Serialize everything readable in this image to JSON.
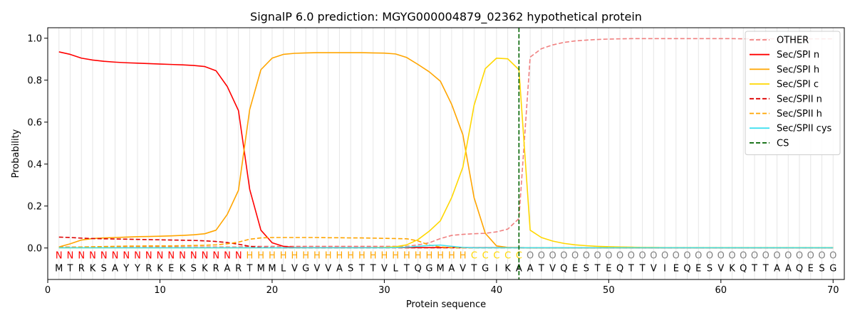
{
  "chart_data": {
    "type": "line",
    "title": "SignalP 6.0 prediction: MGYG000004879_02362 hypothetical protein",
    "xlabel": "Protein sequence",
    "ylabel": "Probability",
    "xlim": [
      0,
      71
    ],
    "ylim": [
      -0.15,
      1.05
    ],
    "xticks": [
      0,
      10,
      20,
      30,
      40,
      50,
      60,
      70
    ],
    "yticks": [
      0.0,
      0.2,
      0.4,
      0.6,
      0.8,
      1.0
    ],
    "ytick_labels": [
      "0.0",
      "0.2",
      "0.4",
      "0.6",
      "0.8",
      "1.0"
    ],
    "grid": "vertical lines at each residue",
    "legend_position": "top-right",
    "sequence": [
      "M",
      "T",
      "R",
      "K",
      "S",
      "A",
      "Y",
      "Y",
      "R",
      "K",
      "E",
      "K",
      "S",
      "K",
      "R",
      "A",
      "R",
      "T",
      "M",
      "M",
      "L",
      "V",
      "G",
      "V",
      "V",
      "A",
      "S",
      "T",
      "T",
      "V",
      "L",
      "T",
      "Q",
      "G",
      "M",
      "A",
      "V",
      "T",
      "G",
      "I",
      "K",
      "A",
      "A",
      "T",
      "V",
      "Q",
      "E",
      "S",
      "T",
      "E",
      "Q",
      "T",
      "T",
      "V",
      "I",
      "E",
      "Q",
      "E",
      "S",
      "V",
      "K",
      "Q",
      "T",
      "T",
      "A",
      "A",
      "Q",
      "E",
      "S",
      "G"
    ],
    "regions": [
      "N",
      "N",
      "N",
      "N",
      "N",
      "N",
      "N",
      "N",
      "N",
      "N",
      "N",
      "N",
      "N",
      "N",
      "N",
      "N",
      "N",
      "H",
      "H",
      "H",
      "H",
      "H",
      "H",
      "H",
      "H",
      "H",
      "H",
      "H",
      "H",
      "H",
      "H",
      "H",
      "H",
      "H",
      "H",
      "H",
      "H",
      "C",
      "C",
      "C",
      "C",
      "C",
      "O",
      "O",
      "O",
      "O",
      "O",
      "O",
      "O",
      "O",
      "O",
      "O",
      "O",
      "O",
      "O",
      "O",
      "O",
      "O",
      "O",
      "O",
      "O",
      "O",
      "O",
      "O",
      "O",
      "O",
      "O",
      "O",
      "O",
      "O",
      "O",
      "O"
    ],
    "region_colors": {
      "N": "#ff0000",
      "H": "#ffa500",
      "C": "#ffd700",
      "O": "#808080"
    },
    "cs_position": 42,
    "series": [
      {
        "name": "OTHER",
        "color": "#f08080",
        "dash": "dashed",
        "values": [
          0.005,
          0.005,
          0.005,
          0.005,
          0.005,
          0.005,
          0.005,
          0.005,
          0.005,
          0.005,
          0.005,
          0.005,
          0.005,
          0.005,
          0.005,
          0.005,
          0.005,
          0.008,
          0.008,
          0.008,
          0.008,
          0.008,
          0.008,
          0.008,
          0.008,
          0.008,
          0.008,
          0.008,
          0.008,
          0.008,
          0.008,
          0.008,
          0.015,
          0.025,
          0.045,
          0.06,
          0.065,
          0.068,
          0.07,
          0.077,
          0.09,
          0.14,
          0.91,
          0.95,
          0.968,
          0.98,
          0.987,
          0.991,
          0.994,
          0.996,
          0.997,
          0.998,
          0.998,
          0.998,
          0.998,
          0.998,
          0.998,
          0.998,
          0.998,
          0.998,
          0.998,
          0.997,
          0.997,
          0.997,
          0.997,
          0.997,
          0.997,
          0.997,
          0.997,
          0.997
        ]
      },
      {
        "name": "Sec/SPI n",
        "color": "#ff0000",
        "dash": "solid",
        "values": [
          0.935,
          0.923,
          0.905,
          0.896,
          0.89,
          0.886,
          0.883,
          0.881,
          0.879,
          0.877,
          0.875,
          0.873,
          0.87,
          0.865,
          0.845,
          0.77,
          0.655,
          0.28,
          0.085,
          0.025,
          0.008,
          0.003,
          0.002,
          0.002,
          0.002,
          0.002,
          0.002,
          0.002,
          0.002,
          0.002,
          0.002,
          0.002,
          0.002,
          0.002,
          0.002,
          0.002,
          0.002,
          0.002,
          0.002,
          0.002,
          0.002,
          0.002,
          0.001,
          0.001,
          0.001,
          0.001,
          0.001,
          0.001,
          0.001,
          0.001,
          0.001,
          0.001,
          0.001,
          0.001,
          0.001,
          0.001,
          0.001,
          0.001,
          0.001,
          0.001,
          0.001,
          0.001,
          0.001,
          0.001,
          0.001,
          0.001,
          0.001,
          0.001,
          0.001,
          0.001
        ]
      },
      {
        "name": "Sec/SPI h",
        "color": "#ffa500",
        "dash": "solid",
        "values": [
          0.005,
          0.02,
          0.038,
          0.045,
          0.048,
          0.05,
          0.052,
          0.054,
          0.055,
          0.056,
          0.058,
          0.06,
          0.063,
          0.068,
          0.085,
          0.16,
          0.275,
          0.66,
          0.85,
          0.905,
          0.923,
          0.928,
          0.93,
          0.931,
          0.931,
          0.931,
          0.931,
          0.931,
          0.93,
          0.929,
          0.925,
          0.908,
          0.875,
          0.84,
          0.795,
          0.685,
          0.54,
          0.24,
          0.07,
          0.01,
          0.003,
          0.002,
          0.001,
          0.001,
          0.001,
          0.001,
          0.001,
          0.001,
          0.001,
          0.001,
          0.001,
          0.001,
          0.001,
          0.001,
          0.001,
          0.001,
          0.001,
          0.001,
          0.001,
          0.001,
          0.001,
          0.001,
          0.001,
          0.001,
          0.001,
          0.001,
          0.001,
          0.001,
          0.001,
          0.001
        ]
      },
      {
        "name": "Sec/SPI c",
        "color": "#ffd700",
        "dash": "solid",
        "values": [
          0.001,
          0.001,
          0.001,
          0.001,
          0.001,
          0.001,
          0.001,
          0.001,
          0.001,
          0.001,
          0.001,
          0.001,
          0.001,
          0.001,
          0.001,
          0.001,
          0.001,
          0.001,
          0.001,
          0.001,
          0.001,
          0.001,
          0.001,
          0.001,
          0.001,
          0.001,
          0.001,
          0.001,
          0.002,
          0.003,
          0.006,
          0.015,
          0.04,
          0.08,
          0.13,
          0.24,
          0.385,
          0.68,
          0.855,
          0.905,
          0.902,
          0.85,
          0.085,
          0.05,
          0.033,
          0.022,
          0.015,
          0.011,
          0.008,
          0.006,
          0.005,
          0.004,
          0.003,
          0.003,
          0.002,
          0.002,
          0.002,
          0.002,
          0.002,
          0.002,
          0.002,
          0.002,
          0.002,
          0.002,
          0.002,
          0.002,
          0.002,
          0.002,
          0.002,
          0.002
        ]
      },
      {
        "name": "Sec/SPII n",
        "color": "#dd0000",
        "dash": "dashed",
        "values": [
          0.052,
          0.05,
          0.047,
          0.045,
          0.044,
          0.043,
          0.042,
          0.041,
          0.04,
          0.039,
          0.038,
          0.037,
          0.036,
          0.034,
          0.031,
          0.026,
          0.018,
          0.008,
          0.003,
          0.002,
          0.001,
          0.001,
          0.001,
          0.001,
          0.001,
          0.001,
          0.001,
          0.001,
          0.001,
          0.001,
          0.001,
          0.001,
          0.001,
          0.001,
          0.001,
          0.001,
          0.001,
          0.001,
          0.001,
          0.001,
          0.001,
          0.001,
          0.001,
          0.001,
          0.001,
          0.001,
          0.001,
          0.001,
          0.001,
          0.001,
          0.001,
          0.001,
          0.001,
          0.001,
          0.001,
          0.001,
          0.001,
          0.001,
          0.001,
          0.001,
          0.001,
          0.001,
          0.001,
          0.001,
          0.001,
          0.001,
          0.001,
          0.001,
          0.001,
          0.001
        ]
      },
      {
        "name": "Sec/SPII h",
        "color": "#ffa500",
        "dash": "dashed",
        "values": [
          0.003,
          0.004,
          0.005,
          0.006,
          0.007,
          0.008,
          0.009,
          0.009,
          0.01,
          0.01,
          0.01,
          0.011,
          0.012,
          0.013,
          0.015,
          0.02,
          0.028,
          0.042,
          0.048,
          0.05,
          0.05,
          0.05,
          0.05,
          0.05,
          0.049,
          0.049,
          0.048,
          0.048,
          0.047,
          0.046,
          0.045,
          0.044,
          0.034,
          0.014,
          0.005,
          0.002,
          0.001,
          0.001,
          0.001,
          0.001,
          0.001,
          0.001,
          0.001,
          0.001,
          0.001,
          0.001,
          0.001,
          0.001,
          0.001,
          0.001,
          0.001,
          0.001,
          0.001,
          0.001,
          0.001,
          0.001,
          0.001,
          0.001,
          0.001,
          0.001,
          0.001,
          0.001,
          0.001,
          0.001,
          0.001,
          0.001,
          0.001,
          0.001,
          0.001,
          0.001
        ]
      },
      {
        "name": "Sec/SPII cys",
        "color": "#40e0f0",
        "dash": "solid",
        "values": [
          0.001,
          0.001,
          0.001,
          0.001,
          0.001,
          0.001,
          0.001,
          0.001,
          0.001,
          0.001,
          0.001,
          0.001,
          0.001,
          0.001,
          0.001,
          0.001,
          0.001,
          0.001,
          0.001,
          0.001,
          0.001,
          0.001,
          0.001,
          0.001,
          0.001,
          0.001,
          0.001,
          0.001,
          0.001,
          0.001,
          0.002,
          0.004,
          0.008,
          0.012,
          0.014,
          0.008,
          0.003,
          0.001,
          0.001,
          0.001,
          0.001,
          0.001,
          0.001,
          0.001,
          0.001,
          0.001,
          0.001,
          0.001,
          0.001,
          0.001,
          0.001,
          0.001,
          0.001,
          0.001,
          0.001,
          0.001,
          0.001,
          0.001,
          0.001,
          0.001,
          0.001,
          0.001,
          0.001,
          0.001,
          0.001,
          0.001,
          0.001,
          0.001,
          0.001,
          0.001
        ]
      }
    ],
    "cs_legend": {
      "name": "CS",
      "color": "#006400",
      "dash": "dashed"
    }
  }
}
